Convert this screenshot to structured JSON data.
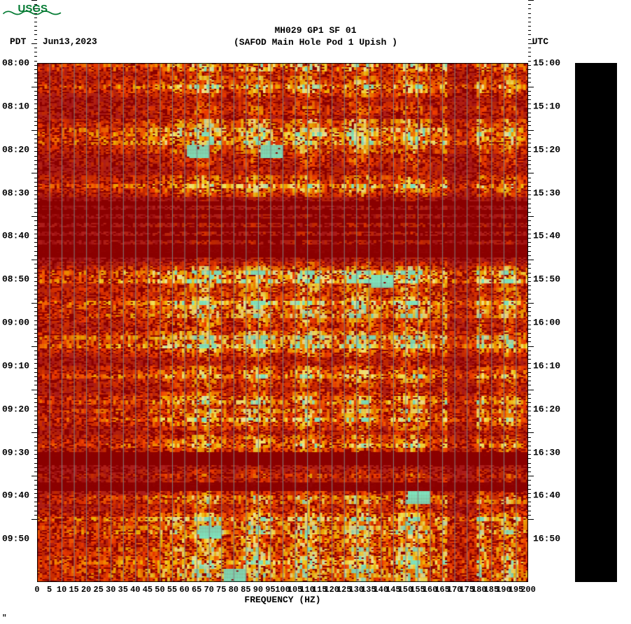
{
  "logo": {
    "text": "USGS",
    "color": "#007930",
    "wave_color": "#007930"
  },
  "header": {
    "title_line1": "MH029 GP1 SF 01",
    "title_line2": "(SAFOD Main Hole Pod 1 Upish )",
    "left_tz": "PDT",
    "left_date": "Jun13,2023",
    "right_tz": "UTC"
  },
  "spectrogram": {
    "type": "heatmap-spectrogram",
    "x_axis": {
      "label": "FREQUENCY (HZ)",
      "min": 0,
      "max": 200,
      "tick_step": 5,
      "ticks": [
        0,
        5,
        10,
        15,
        20,
        25,
        30,
        35,
        40,
        45,
        50,
        55,
        60,
        65,
        70,
        75,
        80,
        85,
        90,
        95,
        100,
        105,
        110,
        115,
        120,
        125,
        130,
        135,
        140,
        145,
        150,
        155,
        160,
        165,
        170,
        175,
        180,
        185,
        190,
        195,
        200
      ],
      "gridline_color": "#808080",
      "grid_step": 5
    },
    "y_axis_left": {
      "label_tz": "PDT",
      "ticks": [
        "08:00",
        "08:10",
        "08:20",
        "08:30",
        "08:40",
        "08:50",
        "09:00",
        "09:10",
        "09:20",
        "09:30",
        "09:40",
        "09:50"
      ],
      "minor_tick_step_minutes": 1
    },
    "y_axis_right": {
      "label_tz": "UTC",
      "ticks": [
        "15:00",
        "15:10",
        "15:20",
        "15:30",
        "15:40",
        "15:50",
        "16:00",
        "16:10",
        "16:20",
        "16:30",
        "16:40",
        "16:50"
      ],
      "minor_tick_step_minutes": 1
    },
    "time_range_minutes": 120,
    "colormap": {
      "background": "#8b0000",
      "stops": [
        "#8b0000",
        "#b22222",
        "#cc3300",
        "#ff4500",
        "#ff8c00",
        "#ffcc00",
        "#ffff66",
        "#ffffaa",
        "#7fffd4"
      ]
    },
    "plot_bg": "#8b0000",
    "colorbar_bg": "#000000",
    "approx_intensity_bands": {
      "low_freq_hz": [
        0,
        55
      ],
      "mid_freq_hz": [
        55,
        165
      ],
      "high_freq_hz": [
        165,
        200
      ],
      "hot_rows_min": [
        0,
        5,
        15,
        18,
        28,
        48,
        50,
        55,
        58,
        63,
        65,
        72,
        78,
        82,
        88,
        100,
        105,
        108,
        112,
        115,
        118
      ],
      "quiet_rows_min": [
        32,
        36,
        40,
        44,
        90,
        92,
        98
      ],
      "cyan_spots": [
        [
          20,
          65
        ],
        [
          20,
          95
        ],
        [
          50,
          140
        ],
        [
          100,
          155
        ],
        [
          108,
          70
        ],
        [
          118,
          80
        ]
      ],
      "persistent_dark_column_hz": [
        167,
        172
      ]
    }
  },
  "styling": {
    "font_family": "Courier New",
    "font_size_pt": 10,
    "font_weight": "bold",
    "text_color": "#000000",
    "page_bg": "#ffffff"
  }
}
